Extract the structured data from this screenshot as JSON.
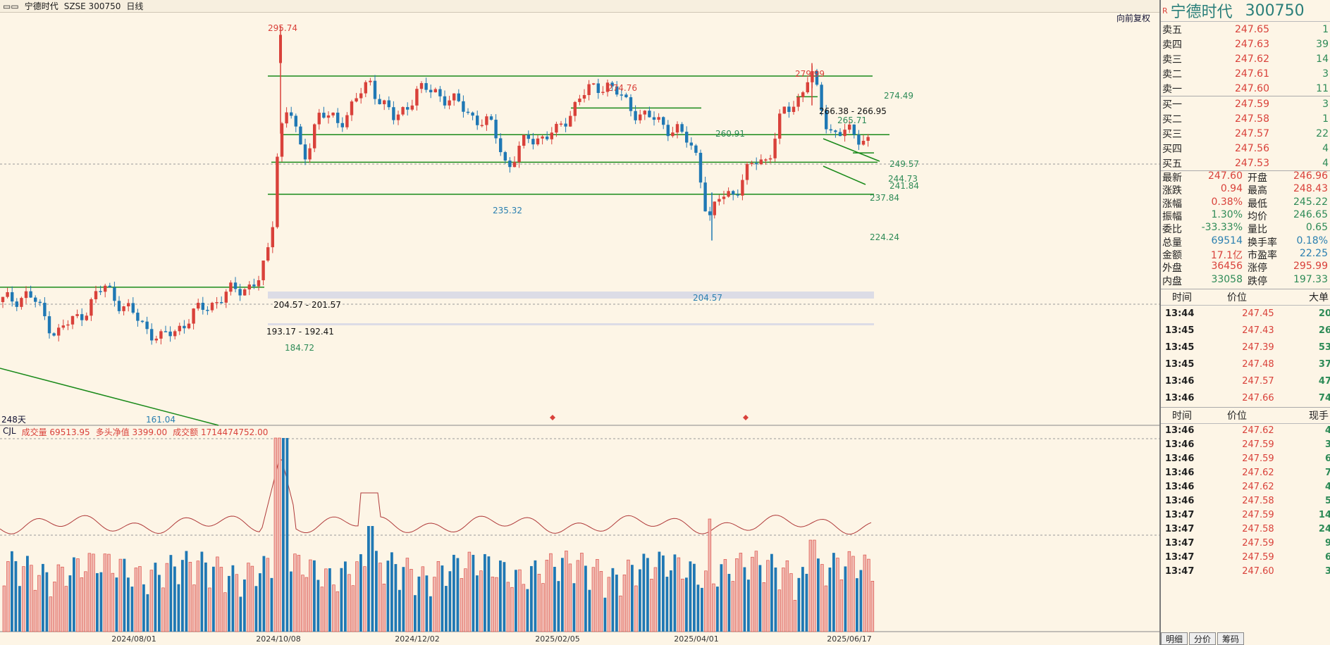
{
  "header": {
    "title": "宁德时代",
    "exchange": "SZSE 300750",
    "period": "日线"
  },
  "toolbar": {
    "restore_label": "向前复权",
    "days_label": "248天"
  },
  "volume_header": {
    "indicator": "CJL",
    "vol_label": "成交量 69513.95",
    "net_label": "多头净值 3399.00",
    "amount_label": "成交额 1714474752.00"
  },
  "price_labels": [
    {
      "text": "295.74",
      "color": "#d9413a"
    },
    {
      "text": "274.76",
      "color": "#d9413a"
    },
    {
      "text": "279.99",
      "color": "#d9413a"
    },
    {
      "text": "274.49",
      "color": "#2e8b57"
    },
    {
      "text": "266.38 - 266.95",
      "color": "#111"
    },
    {
      "text": "265.71",
      "color": "#2e8b57"
    },
    {
      "text": "260.91",
      "color": "#2e8b57"
    },
    {
      "text": "249.57",
      "color": "#2e8b57"
    },
    {
      "text": "244.73",
      "color": "#2e8b57"
    },
    {
      "text": "241.84",
      "color": "#2e8b57"
    },
    {
      "text": "237.84",
      "color": "#2e8b57"
    },
    {
      "text": "235.32",
      "color": "#2a7fb0"
    },
    {
      "text": "224.24",
      "color": "#2e8b57"
    },
    {
      "text": "204.57",
      "color": "#2a7fb0"
    },
    {
      "text": "204.57 - 201.57",
      "color": "#111"
    },
    {
      "text": "193.17 - 192.41",
      "color": "#111"
    },
    {
      "text": "184.72",
      "color": "#2e8b57"
    },
    {
      "text": "161.04",
      "color": "#2a7fb0"
    }
  ],
  "x_dates": [
    "2024/08/01",
    "2024/10/08",
    "2024/12/02",
    "2025/02/05",
    "2025/04/01",
    "2025/06/17"
  ],
  "stock": {
    "name": "宁德时代",
    "code": "300750"
  },
  "orderbook": [
    {
      "label": "卖五",
      "price": "247.65",
      "vol": "1"
    },
    {
      "label": "卖四",
      "price": "247.63",
      "vol": "39"
    },
    {
      "label": "卖三",
      "price": "247.62",
      "vol": "14"
    },
    {
      "label": "卖二",
      "price": "247.61",
      "vol": "3"
    },
    {
      "label": "卖一",
      "price": "247.60",
      "vol": "11"
    },
    {
      "label": "买一",
      "price": "247.59",
      "vol": "3"
    },
    {
      "label": "买二",
      "price": "247.58",
      "vol": "1"
    },
    {
      "label": "买三",
      "price": "247.57",
      "vol": "22"
    },
    {
      "label": "买四",
      "price": "247.56",
      "vol": "4"
    },
    {
      "label": "买五",
      "price": "247.53",
      "vol": "4"
    }
  ],
  "stats": [
    {
      "k1": "最新",
      "v1": "247.60",
      "c1": "#d9413a",
      "k2": "开盘",
      "v2": "246.96",
      "c2": "#d9413a"
    },
    {
      "k1": "涨跌",
      "v1": "0.94",
      "c1": "#d9413a",
      "k2": "最高",
      "v2": "248.43",
      "c2": "#d9413a"
    },
    {
      "k1": "涨幅",
      "v1": "0.38%",
      "c1": "#d9413a",
      "k2": "最低",
      "v2": "245.22",
      "c2": "#2e8b57"
    },
    {
      "k1": "振幅",
      "v1": "1.30%",
      "c1": "#2e8b57",
      "k2": "均价",
      "v2": "246.65",
      "c2": "#2e8b57"
    },
    {
      "k1": "委比",
      "v1": "-33.33%",
      "c1": "#2e8b57",
      "k2": "量比",
      "v2": "0.65",
      "c2": "#2e8b57"
    },
    {
      "k1": "总量",
      "v1": "69514",
      "c1": "#2a7fb0",
      "k2": "换手率",
      "v2": "0.18%",
      "c2": "#2a7fb0"
    },
    {
      "k1": "金额",
      "v1": "17.1亿",
      "c1": "#d9413a",
      "k2": "市盈率",
      "v2": "22.25",
      "c2": "#2a7fb0"
    },
    {
      "k1": "外盘",
      "v1": "36456",
      "c1": "#d9413a",
      "k2": "涨停",
      "v2": "295.99",
      "c2": "#d9413a"
    },
    {
      "k1": "内盘",
      "v1": "33058",
      "c1": "#2e8b57",
      "k2": "跌停",
      "v2": "197.33",
      "c2": "#2e8b57"
    }
  ],
  "big_trades": {
    "h_time": "时间",
    "h_price": "价位",
    "h_vol": "大单",
    "rows": [
      {
        "t": "13:44",
        "p": "247.45",
        "v": "20"
      },
      {
        "t": "13:45",
        "p": "247.43",
        "v": "26"
      },
      {
        "t": "13:45",
        "p": "247.39",
        "v": "53"
      },
      {
        "t": "13:45",
        "p": "247.48",
        "v": "37"
      },
      {
        "t": "13:46",
        "p": "247.57",
        "v": "47"
      },
      {
        "t": "13:46",
        "p": "247.66",
        "v": "74"
      }
    ]
  },
  "ticks": {
    "h_time": "时间",
    "h_price": "价位",
    "h_vol": "现手",
    "rows": [
      {
        "t": "13:46",
        "p": "247.62",
        "v": "4"
      },
      {
        "t": "13:46",
        "p": "247.59",
        "v": "3"
      },
      {
        "t": "13:46",
        "p": "247.59",
        "v": "6"
      },
      {
        "t": "13:46",
        "p": "247.62",
        "v": "7"
      },
      {
        "t": "13:46",
        "p": "247.62",
        "v": "4"
      },
      {
        "t": "13:46",
        "p": "247.58",
        "v": "5"
      },
      {
        "t": "13:47",
        "p": "247.59",
        "v": "14"
      },
      {
        "t": "13:47",
        "p": "247.58",
        "v": "24"
      },
      {
        "t": "13:47",
        "p": "247.59",
        "v": "9"
      },
      {
        "t": "13:47",
        "p": "247.59",
        "v": "6"
      },
      {
        "t": "13:47",
        "p": "247.60",
        "v": "3"
      }
    ]
  },
  "tabs": [
    "明细",
    "分价",
    "筹码"
  ],
  "colors": {
    "up": "#d9413a",
    "down": "#1f78b4",
    "line": "#1a8a1a"
  }
}
